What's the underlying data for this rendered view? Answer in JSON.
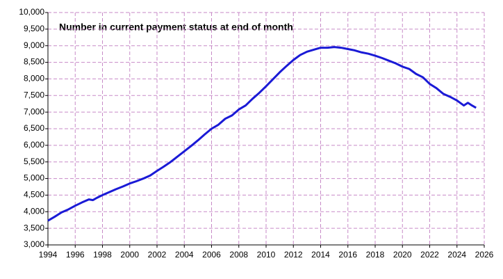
{
  "chart_data": {
    "type": "line",
    "title": "Number in current payment status at end of month",
    "color": "#1a1ad6",
    "grid": true,
    "x": [
      1994,
      1994.5,
      1995,
      1995.5,
      1996,
      1996.5,
      1997,
      1997.3,
      1997.6,
      1998,
      1998.5,
      1999,
      1999.5,
      2000,
      2000.5,
      2001,
      2001.5,
      2002,
      2002.5,
      2003,
      2003.5,
      2004,
      2004.5,
      2005,
      2005.5,
      2006,
      2006.5,
      2007,
      2007.5,
      2008,
      2008.5,
      2009,
      2009.5,
      2010,
      2010.5,
      2011,
      2011.5,
      2012,
      2012.5,
      2013,
      2013.5,
      2014,
      2014.5,
      2015,
      2015.5,
      2016,
      2016.5,
      2017,
      2017.5,
      2018,
      2018.5,
      2019,
      2019.5,
      2020,
      2020.5,
      2021,
      2021.5,
      2022,
      2022.5,
      2023,
      2023.5,
      2024,
      2024.5,
      2024.8,
      2025.1,
      2025.4
    ],
    "values": [
      3730,
      3850,
      3980,
      4070,
      4180,
      4280,
      4370,
      4350,
      4420,
      4500,
      4590,
      4680,
      4760,
      4850,
      4920,
      5000,
      5090,
      5230,
      5360,
      5500,
      5660,
      5820,
      5980,
      6150,
      6330,
      6500,
      6620,
      6800,
      6900,
      7080,
      7200,
      7400,
      7580,
      7780,
      7990,
      8200,
      8390,
      8570,
      8720,
      8820,
      8880,
      8940,
      8940,
      8960,
      8940,
      8900,
      8860,
      8800,
      8760,
      8700,
      8630,
      8550,
      8470,
      8370,
      8300,
      8150,
      8050,
      7850,
      7720,
      7550,
      7460,
      7350,
      7200,
      7280,
      7200,
      7130
    ],
    "xlim": [
      1994,
      2026
    ],
    "xticks": [
      1994,
      1996,
      1998,
      2000,
      2002,
      2004,
      2006,
      2008,
      2010,
      2012,
      2014,
      2016,
      2018,
      2020,
      2022,
      2024,
      2026
    ],
    "ylim": [
      3000,
      10000
    ],
    "yticks": [
      {
        "value": 3000,
        "label": "3,000"
      },
      {
        "value": 3500,
        "label": "3,500"
      },
      {
        "value": 4000,
        "label": "4,000"
      },
      {
        "value": 4500,
        "label": "4,500"
      },
      {
        "value": 5000,
        "label": "5,000"
      },
      {
        "value": 5500,
        "label": "5,500"
      },
      {
        "value": 6000,
        "label": "6,000"
      },
      {
        "value": 6500,
        "label": "6,500"
      },
      {
        "value": 7000,
        "label": "7,000"
      },
      {
        "value": 7500,
        "label": "7,500"
      },
      {
        "value": 8000,
        "label": "8,000"
      },
      {
        "value": 8500,
        "label": "8,500"
      },
      {
        "value": 9000,
        "label": "9,000"
      },
      {
        "value": 9500,
        "label": "9,500"
      },
      {
        "value": 10000,
        "label": "10,000"
      }
    ]
  }
}
